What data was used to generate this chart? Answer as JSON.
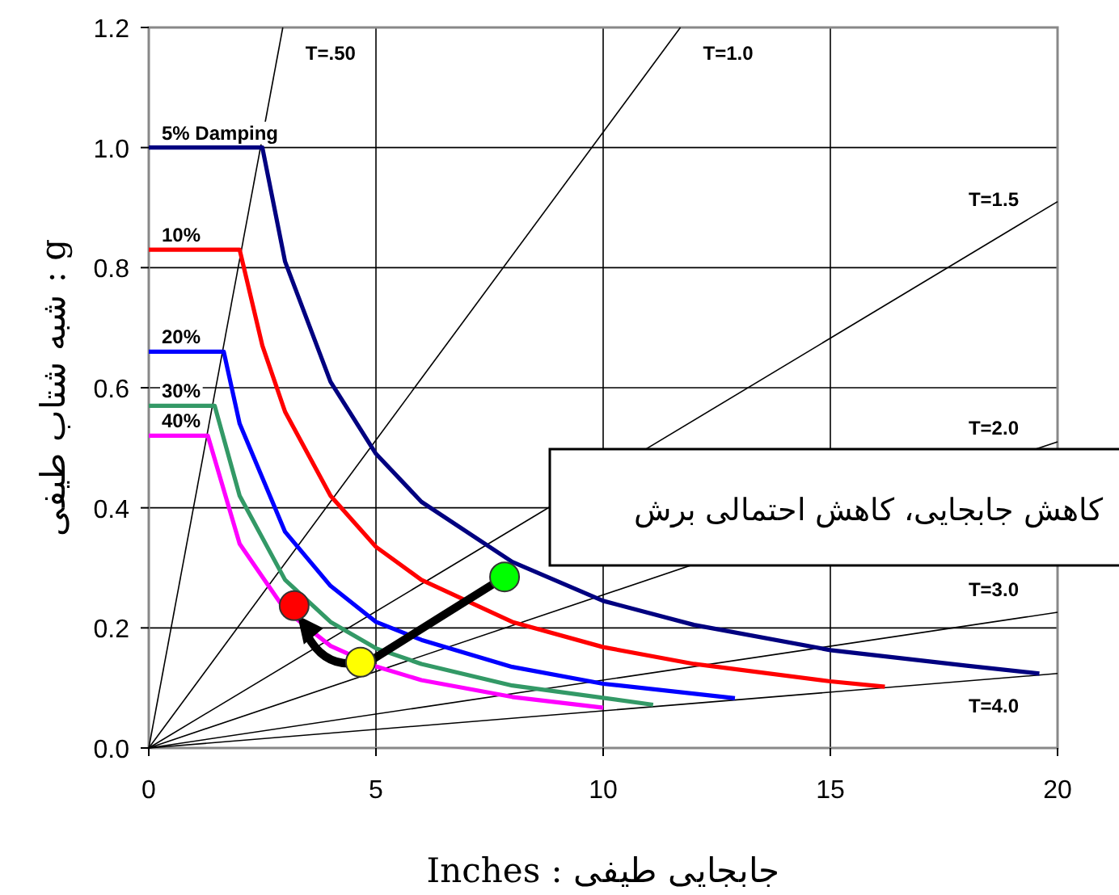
{
  "chart_data": {
    "type": "line",
    "xlabel": "Inches : جابجایی طیفی",
    "ylabel": "g : شبه شتاب طیفی",
    "xlim": [
      0,
      20
    ],
    "ylim": [
      0,
      1.2
    ],
    "xticks": [
      0,
      5,
      10,
      15,
      20
    ],
    "yticks": [
      {
        "value": 0,
        "label": "0.0"
      },
      0.2,
      0.4,
      0.6,
      0.8,
      {
        "value": 1,
        "label": "1.0"
      },
      1.2
    ],
    "grid": true,
    "series": [
      {
        "name": "T=.50",
        "color": "#000000",
        "x": [
          0,
          2.95
        ],
        "values": [
          0,
          1.2
        ]
      },
      {
        "name": "T=1.0",
        "color": "#000000",
        "x": [
          0,
          11.7
        ],
        "values": [
          0,
          1.2
        ]
      },
      {
        "name": "T=1.5",
        "color": "#000000",
        "x": [
          0,
          20
        ],
        "values": [
          0,
          0.91
        ]
      },
      {
        "name": "T=2.0",
        "color": "#000000",
        "x": [
          0,
          20
        ],
        "values": [
          0,
          0.51
        ]
      },
      {
        "name": "T=3.0",
        "color": "#000000",
        "x": [
          0,
          20
        ],
        "values": [
          0,
          0.226
        ]
      },
      {
        "name": "T=4.0",
        "color": "#000000",
        "x": [
          0,
          20
        ],
        "values": [
          0,
          0.124
        ]
      },
      {
        "name": "5% Damping",
        "color": "#000080",
        "x": [
          0,
          2.5,
          3.0,
          4,
          5,
          6,
          8,
          10,
          12,
          15,
          18,
          19.6
        ],
        "values": [
          1.0,
          1.0,
          0.81,
          0.61,
          0.49,
          0.41,
          0.31,
          0.245,
          0.205,
          0.163,
          0.137,
          0.124
        ]
      },
      {
        "name": "10%",
        "color": "#ff0000",
        "x": [
          0,
          2.0,
          2.5,
          3,
          4,
          5,
          6,
          8,
          10,
          12,
          15,
          16.2
        ],
        "values": [
          0.83,
          0.83,
          0.67,
          0.56,
          0.42,
          0.335,
          0.28,
          0.21,
          0.168,
          0.14,
          0.111,
          0.102
        ]
      },
      {
        "name": "20%",
        "color": "#0000ff",
        "x": [
          0,
          1.65,
          2,
          3,
          4,
          5,
          6,
          8,
          10,
          12.9
        ],
        "values": [
          0.66,
          0.66,
          0.54,
          0.36,
          0.27,
          0.21,
          0.18,
          0.135,
          0.107,
          0.083
        ]
      },
      {
        "name": "30%",
        "color": "#339966",
        "x": [
          0,
          1.45,
          2,
          3,
          4,
          5,
          6,
          8,
          11.1
        ],
        "values": [
          0.57,
          0.57,
          0.42,
          0.28,
          0.21,
          0.166,
          0.14,
          0.104,
          0.072
        ]
      },
      {
        "name": "40%",
        "color": "#ff00ff",
        "x": [
          0,
          1.3,
          2,
          3,
          4,
          5,
          6,
          8,
          10
        ],
        "values": [
          0.52,
          0.52,
          0.34,
          0.23,
          0.17,
          0.136,
          0.113,
          0.085,
          0.067
        ]
      },
      {
        "type": "scatter",
        "marker": "circle",
        "x": [
          3.2,
          4.66,
          7.83
        ],
        "values": [
          0.237,
          0.143,
          0.285
        ],
        "colors": [
          "#ff0000",
          "#ffff00",
          "#00ff00"
        ]
      }
    ],
    "annotations": [
      "کاهش جابجایی، کاهش احتمالی برش"
    ]
  }
}
